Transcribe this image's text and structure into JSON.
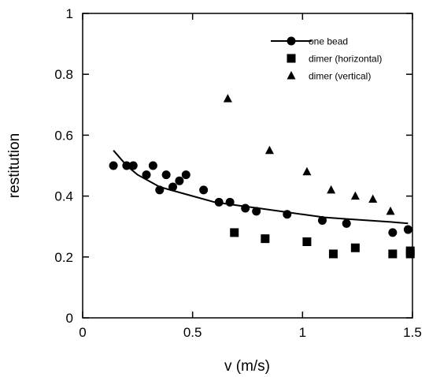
{
  "chart_data": {
    "type": "scatter",
    "title": "",
    "xlabel": "v (m/s)",
    "ylabel": "restitution",
    "xlim": [
      0,
      1.5
    ],
    "ylim": [
      0,
      1
    ],
    "xticks": [
      0,
      0.5,
      1,
      1.5
    ],
    "xtick_labels": [
      "0",
      "0.5",
      "1",
      "1.5"
    ],
    "yticks": [
      0,
      0.2,
      0.4,
      0.6,
      0.8,
      1
    ],
    "ytick_labels": [
      "0",
      "0.2",
      "0.4",
      "0.6",
      "0.8",
      "1"
    ],
    "grid": false,
    "legend_position": "top-right",
    "series": [
      {
        "name": "one bead",
        "marker": "circle",
        "color": "#000000",
        "points": [
          [
            0.14,
            0.5
          ],
          [
            0.2,
            0.5
          ],
          [
            0.23,
            0.5
          ],
          [
            0.29,
            0.47
          ],
          [
            0.32,
            0.5
          ],
          [
            0.35,
            0.42
          ],
          [
            0.38,
            0.47
          ],
          [
            0.41,
            0.43
          ],
          [
            0.44,
            0.45
          ],
          [
            0.47,
            0.47
          ],
          [
            0.55,
            0.42
          ],
          [
            0.62,
            0.38
          ],
          [
            0.67,
            0.38
          ],
          [
            0.74,
            0.36
          ],
          [
            0.79,
            0.35
          ],
          [
            0.93,
            0.34
          ],
          [
            1.09,
            0.32
          ],
          [
            1.2,
            0.31
          ],
          [
            1.41,
            0.28
          ],
          [
            1.48,
            0.29
          ]
        ],
        "fit": {
          "x": [
            0.14,
            0.2,
            0.25,
            0.3,
            0.35,
            0.4,
            0.5,
            0.6,
            0.7,
            0.8,
            0.9,
            1.0,
            1.1,
            1.2,
            1.3,
            1.4,
            1.48
          ],
          "y": [
            0.55,
            0.5,
            0.47,
            0.45,
            0.43,
            0.42,
            0.4,
            0.38,
            0.37,
            0.36,
            0.35,
            0.34,
            0.33,
            0.325,
            0.32,
            0.315,
            0.31
          ]
        }
      },
      {
        "name": "dimer (horizontal)",
        "marker": "square",
        "color": "#000000",
        "points": [
          [
            0.69,
            0.28
          ],
          [
            0.83,
            0.26
          ],
          [
            1.02,
            0.25
          ],
          [
            1.14,
            0.21
          ],
          [
            1.24,
            0.23
          ],
          [
            1.41,
            0.21
          ],
          [
            1.49,
            0.22
          ],
          [
            1.49,
            0.21
          ]
        ]
      },
      {
        "name": "dimer (vertical)",
        "marker": "triangle",
        "color": "#000000",
        "points": [
          [
            0.66,
            0.72
          ],
          [
            0.85,
            0.55
          ],
          [
            1.02,
            0.48
          ],
          [
            1.13,
            0.42
          ],
          [
            1.24,
            0.4
          ],
          [
            1.32,
            0.39
          ],
          [
            1.4,
            0.35
          ]
        ]
      }
    ]
  }
}
